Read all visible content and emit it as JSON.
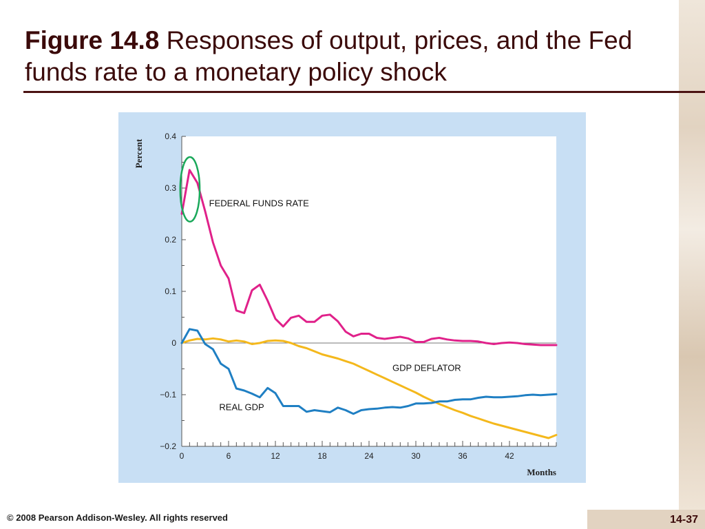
{
  "slide": {
    "title_lead": "Figure 14.8",
    "title_rest": "Responses of output, prices, and the Fed funds rate to a monetary policy shock",
    "footer": "© 2008 Pearson Addison-Wesley. All rights reserved",
    "slide_number": "14-37"
  },
  "chart_data": {
    "type": "line",
    "title": "",
    "xlabel": "Months",
    "ylabel": "Percent",
    "xlim": [
      0,
      48
    ],
    "ylim": [
      -0.2,
      0.4
    ],
    "x_ticks": [
      0,
      6,
      12,
      18,
      24,
      30,
      36,
      42
    ],
    "y_ticks": [
      -0.2,
      -0.1,
      0,
      0.1,
      0.2,
      0.3,
      0.4
    ],
    "y_tick_labels": [
      "−0.2",
      "−0.1",
      "0",
      "0.1",
      "0.2",
      "0.3",
      "0.4"
    ],
    "grid": false,
    "zero_line": true,
    "series": [
      {
        "name": "FEDERAL FUNDS RATE",
        "color": "#e0218a",
        "x": [
          0,
          1,
          2,
          3,
          4,
          5,
          6,
          7,
          8,
          9,
          10,
          11,
          12,
          13,
          14,
          15,
          16,
          17,
          18,
          19,
          20,
          21,
          22,
          23,
          24,
          25,
          26,
          27,
          28,
          29,
          30,
          31,
          32,
          33,
          34,
          35,
          36,
          37,
          38,
          39,
          40,
          41,
          42,
          43,
          44,
          45,
          46,
          47,
          48
        ],
        "values": [
          0.25,
          0.335,
          0.31,
          0.255,
          0.195,
          0.15,
          0.125,
          0.063,
          0.058,
          0.102,
          0.113,
          0.082,
          0.047,
          0.032,
          0.049,
          0.053,
          0.041,
          0.041,
          0.053,
          0.055,
          0.042,
          0.022,
          0.013,
          0.018,
          0.018,
          0.01,
          0.008,
          0.01,
          0.012,
          0.009,
          0.002,
          0.002,
          0.008,
          0.01,
          0.007,
          0.005,
          0.004,
          0.004,
          0.003,
          0.0,
          -0.002,
          0.0,
          0.001,
          0.0,
          -0.002,
          -0.003,
          -0.004,
          -0.004,
          -0.004
        ]
      },
      {
        "name": "GDP DEFLATOR",
        "color": "#f4b81c",
        "x": [
          0,
          1,
          2,
          3,
          4,
          5,
          6,
          7,
          8,
          9,
          10,
          11,
          12,
          13,
          14,
          15,
          16,
          17,
          18,
          19,
          20,
          21,
          22,
          23,
          24,
          25,
          26,
          27,
          28,
          29,
          30,
          31,
          32,
          33,
          34,
          35,
          36,
          37,
          38,
          39,
          40,
          41,
          42,
          43,
          44,
          45,
          46,
          47,
          48
        ],
        "values": [
          0.0,
          0.005,
          0.008,
          0.007,
          0.009,
          0.007,
          0.003,
          0.005,
          0.003,
          -0.002,
          0.0,
          0.004,
          0.005,
          0.004,
          0.0,
          -0.006,
          -0.01,
          -0.016,
          -0.022,
          -0.026,
          -0.03,
          -0.035,
          -0.04,
          -0.047,
          -0.054,
          -0.061,
          -0.068,
          -0.075,
          -0.082,
          -0.089,
          -0.096,
          -0.104,
          -0.111,
          -0.118,
          -0.124,
          -0.13,
          -0.135,
          -0.141,
          -0.146,
          -0.151,
          -0.156,
          -0.16,
          -0.164,
          -0.168,
          -0.172,
          -0.176,
          -0.18,
          -0.184,
          -0.178
        ]
      },
      {
        "name": "REAL GDP",
        "color": "#1f7fc3",
        "x": [
          0,
          1,
          2,
          3,
          4,
          5,
          6,
          7,
          8,
          9,
          10,
          11,
          12,
          13,
          14,
          15,
          16,
          17,
          18,
          19,
          20,
          21,
          22,
          23,
          24,
          25,
          26,
          27,
          28,
          29,
          30,
          31,
          32,
          33,
          34,
          35,
          36,
          37,
          38,
          39,
          40,
          41,
          42,
          43,
          44,
          45,
          46,
          47,
          48
        ],
        "values": [
          0.0,
          0.027,
          0.024,
          -0.002,
          -0.012,
          -0.04,
          -0.05,
          -0.088,
          -0.092,
          -0.098,
          -0.105,
          -0.087,
          -0.097,
          -0.122,
          -0.122,
          -0.122,
          -0.133,
          -0.13,
          -0.132,
          -0.134,
          -0.125,
          -0.13,
          -0.137,
          -0.13,
          -0.128,
          -0.127,
          -0.125,
          -0.124,
          -0.125,
          -0.122,
          -0.117,
          -0.117,
          -0.116,
          -0.113,
          -0.113,
          -0.11,
          -0.109,
          -0.109,
          -0.106,
          -0.104,
          -0.105,
          -0.105,
          -0.104,
          -0.103,
          -0.101,
          -0.1,
          -0.101,
          -0.1,
          -0.099
        ]
      }
    ],
    "annotations": [
      {
        "text": "FEDERAL FUNDS RATE",
        "x": 3.5,
        "y": 0.265
      },
      {
        "text": "GDP DEFLATOR",
        "x": 27,
        "y": -0.054
      },
      {
        "text": "REAL GDP",
        "x": 4.8,
        "y": -0.13
      }
    ],
    "highlight": {
      "shape": "ellipse",
      "color": "#1aa85a",
      "x_range": [
        -0.2,
        2.3
      ],
      "y_range": [
        0.235,
        0.36
      ]
    }
  }
}
